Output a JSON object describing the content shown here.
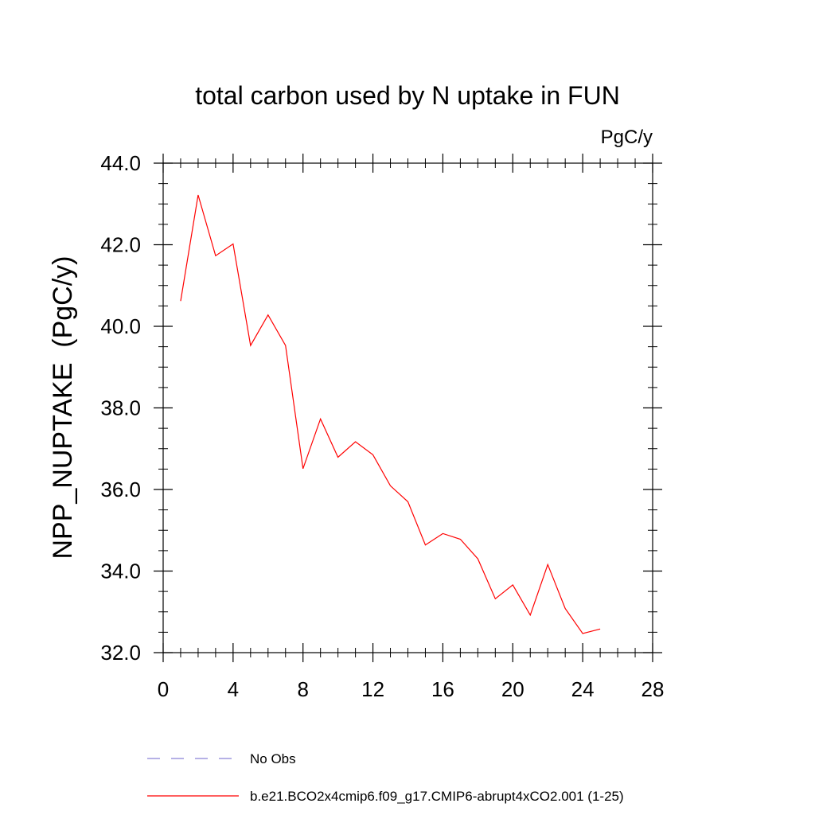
{
  "chart_data": {
    "type": "line",
    "title": "total carbon used by N uptake in FUN",
    "units_label": "PgC/y",
    "ylabel": "NPP_NUPTAKE  (PgC/y)",
    "xlabel": "",
    "xlim": [
      0,
      28
    ],
    "ylim": [
      32.0,
      44.0
    ],
    "x_ticks": [
      0,
      4,
      8,
      12,
      16,
      20,
      24,
      28
    ],
    "x_tick_labels": [
      "0",
      "4",
      "8",
      "12",
      "16",
      "20",
      "24",
      "28"
    ],
    "y_ticks": [
      32,
      34,
      36,
      38,
      40,
      42,
      44
    ],
    "y_tick_labels": [
      "32.0",
      "34.0",
      "36.0",
      "38.0",
      "40.0",
      "42.0",
      "44.0"
    ],
    "grid": false,
    "legend_position": "bottom",
    "series": [
      {
        "name": "b.e21.BCO2x4cmip6.f09_g17.CMIP6-abrupt4xCO2.001 (1-25)",
        "color": "#ff0000",
        "style": "solid",
        "x": [
          1,
          2,
          3,
          4,
          5,
          6,
          7,
          8,
          9,
          10,
          11,
          12,
          13,
          14,
          15,
          16,
          17,
          18,
          19,
          20,
          21,
          22,
          23,
          24,
          25
        ],
        "values": [
          40.62,
          43.22,
          41.73,
          42.02,
          39.53,
          40.28,
          39.53,
          36.51,
          37.73,
          36.79,
          37.17,
          36.85,
          36.09,
          35.7,
          34.64,
          34.92,
          34.78,
          34.3,
          33.32,
          33.66,
          32.92,
          34.16,
          33.08,
          32.47,
          32.58
        ]
      }
    ],
    "legend": [
      {
        "label": "No Obs",
        "color": "#8a82d8",
        "style": "dashed"
      },
      {
        "label": "b.e21.BCO2x4cmip6.f09_g17.CMIP6-abrupt4xCO2.001 (1-25)",
        "color": "#ff0000",
        "style": "solid"
      }
    ]
  }
}
